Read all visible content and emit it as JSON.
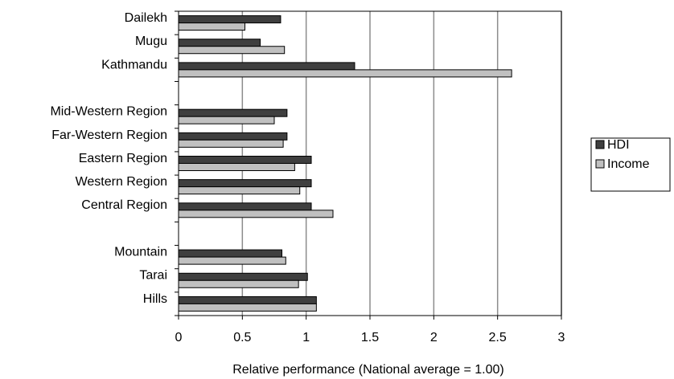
{
  "chart_data": {
    "type": "bar",
    "orientation": "horizontal",
    "groups": [
      {
        "categories": [
          "Dailekh",
          "Mugu",
          "Kathmandu"
        ]
      },
      {
        "categories": [
          "Mid-Western Region",
          "Far-Western Region",
          "Eastern Region",
          "Western Region",
          "Central Region"
        ]
      },
      {
        "categories": [
          "Mountain",
          "Tarai",
          "Hills"
        ]
      }
    ],
    "categories": [
      "Dailekh",
      "Mugu",
      "Kathmandu",
      "Mid-Western Region",
      "Far-Western Region",
      "Eastern Region",
      "Western Region",
      "Central Region",
      "Mountain",
      "Tarai",
      "Hills"
    ],
    "series": [
      {
        "name": "HDI",
        "color": "#3f3f3f",
        "values": [
          0.8,
          0.64,
          1.38,
          0.85,
          0.85,
          1.04,
          1.04,
          1.04,
          0.81,
          1.01,
          1.08
        ]
      },
      {
        "name": "Income",
        "color": "#c0c0c0",
        "values": [
          0.52,
          0.83,
          2.61,
          0.75,
          0.82,
          0.91,
          0.95,
          1.21,
          0.84,
          0.94,
          1.08
        ]
      }
    ],
    "xlabel": "Relative performance (National average = 1.00)",
    "xlim": [
      0,
      3
    ],
    "xticks": [
      "0",
      "0.5",
      "1",
      "1.5",
      "2",
      "2.5",
      "3"
    ],
    "grid": "vertical",
    "legend": "right"
  }
}
